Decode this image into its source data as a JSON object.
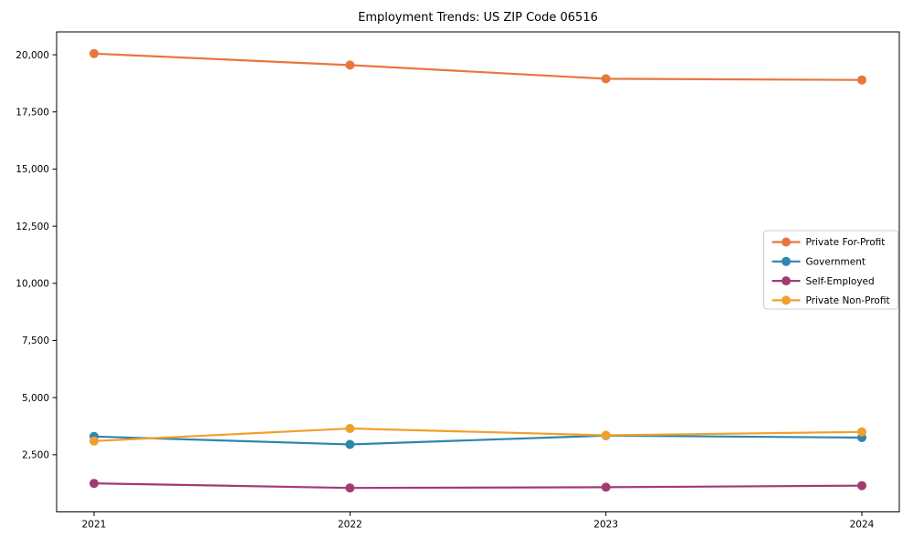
{
  "chart_data": {
    "type": "line",
    "title": "Employment Trends: US ZIP Code 06516",
    "xlabel": "",
    "ylabel": "",
    "categories": [
      "2021",
      "2022",
      "2023",
      "2024"
    ],
    "series": [
      {
        "name": "Private For-Profit",
        "color": "#E8763F",
        "values": [
          20050,
          19550,
          18950,
          18900
        ]
      },
      {
        "name": "Government",
        "color": "#2E86AB",
        "values": [
          3300,
          2950,
          3340,
          3250
        ]
      },
      {
        "name": "Self-Employed",
        "color": "#A23B72",
        "values": [
          1250,
          1050,
          1080,
          1150
        ]
      },
      {
        "name": "Private Non-Profit",
        "color": "#F0A02C",
        "values": [
          3100,
          3650,
          3350,
          3500
        ]
      }
    ],
    "ylim": [
      0,
      21000
    ],
    "yticks": [
      2500,
      5000,
      7500,
      10000,
      12500,
      15000,
      17500,
      20000
    ],
    "ytick_labels": [
      "2,500",
      "5,000",
      "7,500",
      "10,000",
      "12,500",
      "15,000",
      "17,500",
      "20,000"
    ],
    "xtick_labels": [
      "2021",
      "2022",
      "2023",
      "2024"
    ],
    "grid": false,
    "legend_position": "center right",
    "marker": "circle",
    "colors": {
      "background": "#ffffff",
      "axis": "#000000",
      "text": "#000000",
      "legend_border": "#cccccc",
      "legend_background": "#ffffff"
    }
  }
}
